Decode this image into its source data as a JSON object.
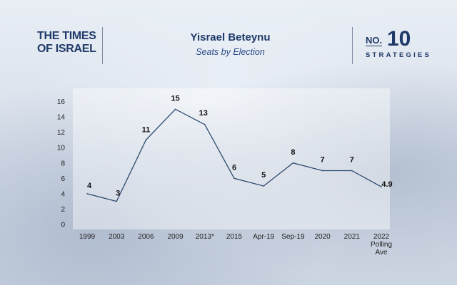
{
  "logo_left": {
    "line1": "THE TIMES",
    "line2": "OF ISRAEL"
  },
  "logo_right": {
    "no": "NO.",
    "number": "10",
    "word": "STRATEGIES"
  },
  "chart_data": {
    "type": "line",
    "title": "Yisrael Beteynu",
    "subtitle": "Seats by Election",
    "categories": [
      "1999",
      "2003",
      "2006",
      "2009",
      "2013*",
      "2015",
      "Apr-19",
      "Sep-19",
      "2020",
      "2021",
      "2022 Polling Ave"
    ],
    "category_lines": [
      [
        "1999"
      ],
      [
        "2003"
      ],
      [
        "2006"
      ],
      [
        "2009"
      ],
      [
        "2013*"
      ],
      [
        "2015"
      ],
      [
        "Apr-19"
      ],
      [
        "Sep-19"
      ],
      [
        "2020"
      ],
      [
        "2021"
      ],
      [
        "2022",
        "Polling",
        "Ave"
      ]
    ],
    "values": [
      4,
      3,
      11,
      15,
      13,
      6,
      5,
      8,
      7,
      7,
      4.9
    ],
    "data_labels": [
      "4",
      "3",
      "11",
      "15",
      "13",
      "6",
      "5",
      "8",
      "7",
      "7",
      "4.9"
    ],
    "ylim": [
      0,
      16
    ],
    "yticks": [
      0,
      2,
      4,
      6,
      8,
      10,
      12,
      14,
      16
    ],
    "xlabel": "",
    "ylabel": "",
    "grid": false,
    "line_color": "#2e4a6e"
  }
}
